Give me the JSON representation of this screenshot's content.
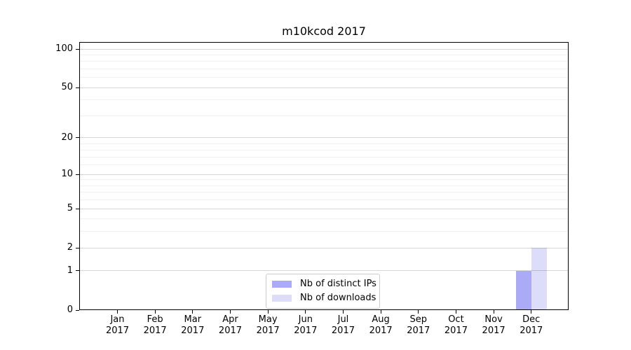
{
  "chart_data": {
    "type": "bar",
    "title": "m10kcod 2017",
    "categories": [
      "Jan 2017",
      "Feb 2017",
      "Mar 2017",
      "Apr 2017",
      "May 2017",
      "Jun 2017",
      "Jul 2017",
      "Aug 2017",
      "Sep 2017",
      "Oct 2017",
      "Nov 2017",
      "Dec 2017"
    ],
    "series": [
      {
        "name": "Nb of distinct IPs",
        "color": "#aaaaf7",
        "values": [
          0,
          0,
          0,
          0,
          0,
          0,
          0,
          0,
          0,
          0,
          0,
          1
        ]
      },
      {
        "name": "Nb of downloads",
        "color": "#dddcf9",
        "values": [
          0,
          0,
          0,
          0,
          0,
          0,
          0,
          0,
          0,
          0,
          0,
          2
        ]
      }
    ],
    "xlabel": "",
    "ylabel": "",
    "yscale": "log1p",
    "ylim": [
      0,
      105
    ],
    "yticks": [
      0,
      1,
      2,
      5,
      10,
      20,
      50,
      100
    ],
    "minor_yticks": [
      3,
      4,
      6,
      7,
      8,
      9,
      12,
      14,
      16,
      18,
      30,
      40,
      60,
      70,
      80,
      90
    ],
    "grid": "horizontal",
    "grid_over_bars": true,
    "legend_position": "inside-bottom-center",
    "styles": {
      "axis_color": "#000000",
      "major_grid_color": "rgba(0,0,0,0.16)",
      "minor_grid_color": "rgba(0,0,0,0.055)",
      "legend_border_color": "#cccccc",
      "background": "#ffffff"
    }
  }
}
